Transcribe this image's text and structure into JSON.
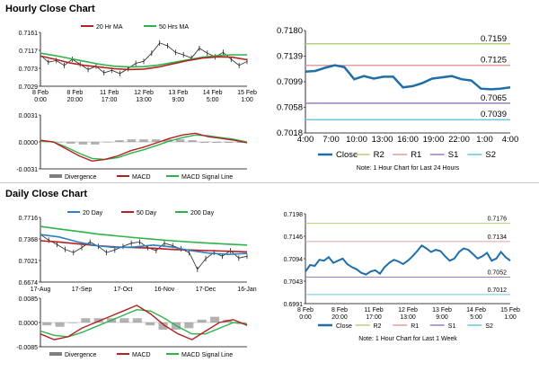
{
  "titles": {
    "hourly": "Hourly Close Chart",
    "daily": "Daily Close Chart"
  },
  "colors": {
    "close": "#1f6ea9",
    "close_light": "#2c7fc0",
    "ma20": "#b22222",
    "ma50": "#2db34a",
    "ma200": "#2db34a",
    "r2": "#b8cf7a",
    "r1": "#e0a0a0",
    "s1": "#9b7fc0",
    "s2": "#6fc6dd",
    "bars": "#7f7f7f"
  },
  "chart_data": [
    {
      "id": "hourly-price",
      "type": "line",
      "legend": [
        "20 Hr MA",
        "50 Hrs MA"
      ],
      "y_ticks": [
        "0.7161",
        "0.7117",
        "0.7073",
        "0.7029"
      ],
      "ylim": [
        0.7029,
        0.7161
      ],
      "x_ticks": [
        [
          "8 Feb",
          "0:00"
        ],
        [
          "8 Feb",
          "20:00"
        ],
        [
          "11 Feb",
          "17:00"
        ],
        [
          "12 Feb",
          "13:00"
        ],
        [
          "13 Feb",
          "9:00"
        ],
        [
          "14 Feb",
          "5:00"
        ],
        [
          "15 Feb",
          "1:00"
        ]
      ],
      "series": [
        {
          "name": "20 Hr MA",
          "values": [
            0.7103,
            0.7095,
            0.7086,
            0.708,
            0.7076,
            0.7072,
            0.707,
            0.7071,
            0.7076,
            0.7084,
            0.7092,
            0.7098,
            0.7101,
            0.71,
            0.7094
          ]
        },
        {
          "name": "50 Hrs MA",
          "values": [
            0.711,
            0.7104,
            0.7097,
            0.709,
            0.7083,
            0.7078,
            0.7076,
            0.7077,
            0.7081,
            0.7087,
            0.7094,
            0.71,
            0.7104,
            0.7106,
            0.7106
          ]
        }
      ],
      "price": [
        0.7105,
        0.7088,
        0.7092,
        0.708,
        0.7095,
        0.7083,
        0.707,
        0.7078,
        0.7062,
        0.7068,
        0.706,
        0.7072,
        0.7085,
        0.709,
        0.711,
        0.7135,
        0.7128,
        0.7112,
        0.7106,
        0.7098,
        0.7122,
        0.711,
        0.7101,
        0.7112,
        0.7095,
        0.708,
        0.709
      ]
    },
    {
      "id": "hourly-macd",
      "type": "bar",
      "y_ticks": [
        "0.0031",
        "0.0000",
        "-0.0031"
      ],
      "ylim": [
        -0.0031,
        0.0031
      ],
      "legend": [
        "Divergence",
        "MACD",
        "MACD Signal Line"
      ],
      "macd": [
        0.0002,
        0.0,
        -0.0008,
        -0.0016,
        -0.0022,
        -0.002,
        -0.0016,
        -0.001,
        -0.0006,
        -0.0001,
        0.0004,
        0.0008,
        0.001,
        0.0006,
        0.0004,
        0.0002,
        -0.0001
      ],
      "signal": [
        0.0001,
        0.0,
        -0.0006,
        -0.0013,
        -0.0019,
        -0.002,
        -0.0018,
        -0.0013,
        -0.0009,
        -0.0004,
        0.0001,
        0.0005,
        0.0008,
        0.0007,
        0.0005,
        0.0003,
        0.0
      ],
      "divergence": [
        0.0001,
        0.0,
        -0.0002,
        -0.0003,
        -0.0003,
        0.0,
        0.0002,
        0.0003,
        0.0003,
        0.0003,
        0.0003,
        0.0003,
        0.0002,
        -0.0001,
        -0.0001,
        -0.0001,
        -0.0001
      ]
    },
    {
      "id": "hourly-levels",
      "type": "line",
      "y_ticks": [
        "0.7180",
        "0.7139",
        "0.7099",
        "0.7058",
        "0.7018"
      ],
      "ylim": [
        0.7018,
        0.718
      ],
      "x_ticks": [
        "4:00",
        "7:00",
        "10:00",
        "13:00",
        "16:00",
        "19:00",
        "22:00",
        "1:00",
        "4:00"
      ],
      "levels": [
        {
          "name": "R2",
          "value": 0.7159,
          "label": "0.7159"
        },
        {
          "name": "R1",
          "value": 0.7125,
          "label": "0.7125"
        },
        {
          "name": "S1",
          "value": 0.7065,
          "label": "0.7065"
        },
        {
          "name": "S2",
          "value": 0.7039,
          "label": "0.7039"
        }
      ],
      "series": [
        {
          "name": "Close",
          "values": [
            0.7115,
            0.7116,
            0.7121,
            0.7125,
            0.7122,
            0.7103,
            0.7108,
            0.7104,
            0.7107,
            0.7107,
            0.709,
            0.7092,
            0.7097,
            0.7104,
            0.7106,
            0.7108,
            0.7103,
            0.7101,
            0.7088,
            0.7087,
            0.7088,
            0.709
          ]
        }
      ],
      "legend": [
        "Close",
        "R2",
        "R1",
        "S1",
        "S2"
      ],
      "note": "Note: 1 Hour Chart for Last 24 Hours"
    },
    {
      "id": "daily-price",
      "type": "line",
      "legend": [
        "20 Day",
        "50 Day",
        "200 Day"
      ],
      "y_ticks": [
        "0.7716",
        "0.7368",
        "0.7021",
        "0.6674"
      ],
      "ylim": [
        0.6674,
        0.7716
      ],
      "x_ticks": [
        "17-Aug",
        "17-Sep",
        "17-Oct",
        "16-Nov",
        "17-Dec",
        "16-Jan"
      ],
      "series": [
        {
          "name": "20 Day",
          "values": [
            0.744,
            0.74,
            0.732,
            0.726,
            0.723,
            0.724,
            0.727,
            0.724,
            0.718,
            0.714,
            0.712,
            0.7135
          ]
        },
        {
          "name": "50 Day",
          "values": [
            0.734,
            0.732,
            0.729,
            0.726,
            0.724,
            0.723,
            0.722,
            0.72,
            0.719,
            0.718,
            0.717,
            0.716
          ]
        },
        {
          "name": "200 Day",
          "values": [
            0.757,
            0.753,
            0.749,
            0.745,
            0.742,
            0.739,
            0.7365,
            0.734,
            0.732,
            0.73,
            0.7285,
            0.727
          ]
        }
      ],
      "price": [
        0.744,
        0.735,
        0.728,
        0.72,
        0.715,
        0.723,
        0.732,
        0.725,
        0.715,
        0.719,
        0.725,
        0.73,
        0.732,
        0.723,
        0.718,
        0.73,
        0.726,
        0.721,
        0.715,
        0.688,
        0.705,
        0.715,
        0.709,
        0.718,
        0.706,
        0.709
      ]
    },
    {
      "id": "daily-macd",
      "type": "bar",
      "y_ticks": [
        "0.0085",
        "0.0000",
        "-0.0085"
      ],
      "ylim": [
        -0.0085,
        0.0085
      ],
      "legend": [
        "Divergence",
        "MACD",
        "MACD Signal Line"
      ],
      "macd": [
        -0.004,
        -0.006,
        -0.005,
        -0.002,
        0.0,
        0.002,
        0.004,
        0.006,
        0.003,
        -0.001,
        -0.004,
        -0.006,
        -0.003,
        0.0,
        0.001,
        -0.001
      ],
      "signal": [
        -0.003,
        -0.0045,
        -0.005,
        -0.0035,
        -0.0015,
        0.0005,
        0.0025,
        0.0045,
        0.004,
        0.0015,
        -0.0015,
        -0.004,
        -0.004,
        -0.002,
        0.0,
        -0.0005
      ],
      "divergence": [
        -0.001,
        -0.0015,
        0.0,
        0.0015,
        0.0015,
        0.0015,
        0.0015,
        0.0015,
        -0.001,
        -0.0025,
        -0.0025,
        -0.002,
        0.001,
        0.002,
        0.001,
        -0.0005
      ]
    },
    {
      "id": "daily-levels",
      "type": "line",
      "y_ticks": [
        "0.7198",
        "0.7146",
        "0.7094",
        "0.7043",
        "0.6991"
      ],
      "ylim": [
        0.6991,
        0.7198
      ],
      "x_ticks": [
        [
          "8 Feb",
          "0:00"
        ],
        [
          "8 Feb",
          "20:00"
        ],
        [
          "11 Feb",
          "17:00"
        ],
        [
          "12 Feb",
          "13:00"
        ],
        [
          "13 Feb",
          "9:00"
        ],
        [
          "14 Feb",
          "5:00"
        ],
        [
          "15 Feb",
          "1:00"
        ]
      ],
      "levels": [
        {
          "name": "R2",
          "value": 0.7176,
          "label": "0.7176"
        },
        {
          "name": "R1",
          "value": 0.7134,
          "label": "0.7134"
        },
        {
          "name": "S1",
          "value": 0.7052,
          "label": "0.7052"
        },
        {
          "name": "S2",
          "value": 0.7012,
          "label": "0.7012"
        }
      ],
      "series": [
        {
          "name": "Close",
          "values": [
            0.7065,
            0.708,
            0.7078,
            0.7092,
            0.709,
            0.7098,
            0.7085,
            0.709,
            0.7095,
            0.7082,
            0.7075,
            0.707,
            0.7062,
            0.7058,
            0.7065,
            0.7068,
            0.706,
            0.7075,
            0.7085,
            0.7092,
            0.7088,
            0.7082,
            0.709,
            0.71,
            0.7112,
            0.7125,
            0.7118,
            0.711,
            0.7115,
            0.7112,
            0.71,
            0.709,
            0.7095,
            0.711,
            0.7118,
            0.7115,
            0.7105,
            0.7095,
            0.71,
            0.7108,
            0.709,
            0.7095,
            0.711,
            0.7098,
            0.709
          ]
        }
      ],
      "legend": [
        "Close",
        "R2",
        "R1",
        "S1",
        "S2"
      ],
      "note": "Note: 1 Hour Chart for Last 1 Week"
    }
  ]
}
